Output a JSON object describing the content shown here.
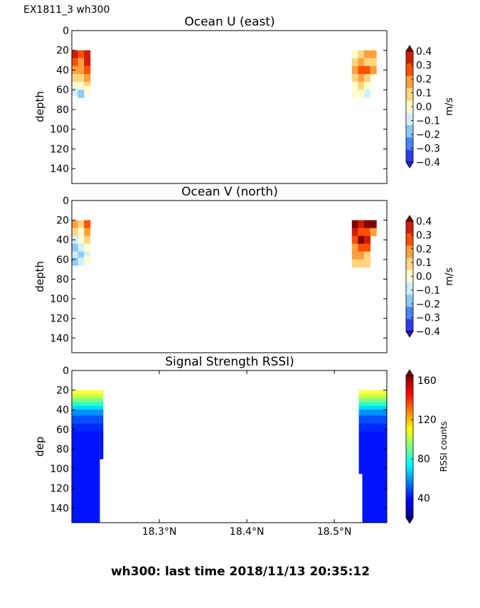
{
  "figure": {
    "corner_label": "EX1811_3 wh300",
    "footer": "wh300: last time 2018/11/13 20:35:12"
  },
  "chart_data": [
    {
      "type": "heatmap",
      "title": "Ocean U (east)",
      "ylabel": "depth",
      "ylim": [
        155,
        0
      ],
      "yticks": [
        "0",
        "20",
        "40",
        "60",
        "80",
        "100",
        "120",
        "140"
      ],
      "xlim": [
        18.2,
        18.56
      ],
      "colorbar": {
        "label": "m/s",
        "ticks": [
          "0.4",
          "0.3",
          "0.2",
          "0.1",
          "0.0",
          "−0.1",
          "−0.2",
          "−0.3",
          "−0.4"
        ],
        "levels": [
          "#7f0000",
          "#d01d00",
          "#ff5000",
          "#ffa040",
          "#ffd680",
          "#fffccf",
          "#d0f0ff",
          "#8ec8ff",
          "#4a84ff",
          "#2b3cf0",
          "#2a0fd0"
        ]
      },
      "blocks": [
        {
          "x": 18.2,
          "depth": 20,
          "color": "#d01d00"
        },
        {
          "x": 18.2,
          "depth": 28,
          "color": "#ff5000"
        },
        {
          "x": 18.2,
          "depth": 36,
          "color": "#ffa040"
        },
        {
          "x": 18.2,
          "depth": 44,
          "color": "#ffd680"
        },
        {
          "x": 18.2,
          "depth": 52,
          "color": "#fffccf"
        },
        {
          "x": 18.2,
          "depth": 58,
          "color": "#d0f0ff"
        },
        {
          "x": 18.207,
          "depth": 20,
          "color": "#ff5000"
        },
        {
          "x": 18.207,
          "depth": 28,
          "color": "#ffa040"
        },
        {
          "x": 18.207,
          "depth": 36,
          "color": "#ffa040"
        },
        {
          "x": 18.207,
          "depth": 44,
          "color": "#ffd680"
        },
        {
          "x": 18.207,
          "depth": 52,
          "color": "#fffccf"
        },
        {
          "x": 18.207,
          "depth": 60,
          "color": "#8ec8ff"
        },
        {
          "x": 18.214,
          "depth": 20,
          "color": "#d01d00"
        },
        {
          "x": 18.214,
          "depth": 28,
          "color": "#d01d00"
        },
        {
          "x": 18.214,
          "depth": 36,
          "color": "#ff5000"
        },
        {
          "x": 18.214,
          "depth": 44,
          "color": "#ffa040"
        },
        {
          "x": 18.214,
          "depth": 52,
          "color": "#ffd680"
        },
        {
          "x": 18.214,
          "depth": 56,
          "color": "#fffccf"
        },
        {
          "x": 18.52,
          "depth": 20,
          "color": "#fffccf"
        },
        {
          "x": 18.52,
          "depth": 28,
          "color": "#ffd680"
        },
        {
          "x": 18.52,
          "depth": 36,
          "color": "#ffa040"
        },
        {
          "x": 18.52,
          "depth": 44,
          "color": "#ffd680"
        },
        {
          "x": 18.52,
          "depth": 52,
          "color": "#fffccf"
        },
        {
          "x": 18.52,
          "depth": 60,
          "color": "#fffccf"
        },
        {
          "x": 18.527,
          "depth": 20,
          "color": "#ffd680"
        },
        {
          "x": 18.527,
          "depth": 28,
          "color": "#ffa040"
        },
        {
          "x": 18.527,
          "depth": 36,
          "color": "#ff5000"
        },
        {
          "x": 18.527,
          "depth": 44,
          "color": "#ffa040"
        },
        {
          "x": 18.527,
          "depth": 52,
          "color": "#ffd680"
        },
        {
          "x": 18.527,
          "depth": 60,
          "color": "#fffccf"
        },
        {
          "x": 18.534,
          "depth": 20,
          "color": "#ffa040"
        },
        {
          "x": 18.534,
          "depth": 28,
          "color": "#ffd680"
        },
        {
          "x": 18.534,
          "depth": 36,
          "color": "#ff5000"
        },
        {
          "x": 18.534,
          "depth": 44,
          "color": "#ffd680"
        },
        {
          "x": 18.534,
          "depth": 52,
          "color": "#fffccf"
        },
        {
          "x": 18.534,
          "depth": 60,
          "color": "#d0f0ff"
        },
        {
          "x": 18.541,
          "depth": 20,
          "color": "#ffa040"
        },
        {
          "x": 18.541,
          "depth": 28,
          "color": "#ffd680"
        },
        {
          "x": 18.541,
          "depth": 36,
          "color": "#ffa040"
        }
      ]
    },
    {
      "type": "heatmap",
      "title": "Ocean V (north)",
      "ylabel": "depth",
      "ylim": [
        155,
        0
      ],
      "yticks": [
        "0",
        "20",
        "40",
        "60",
        "80",
        "100",
        "120",
        "140"
      ],
      "xlim": [
        18.2,
        18.56
      ],
      "colorbar": {
        "label": "m/s",
        "ticks": [
          "0.4",
          "0.3",
          "0.2",
          "0.1",
          "0.0",
          "−0.1",
          "−0.2",
          "−0.3",
          "−0.4"
        ],
        "levels": [
          "#7f0000",
          "#d01d00",
          "#ff5000",
          "#ffa040",
          "#ffd680",
          "#fffccf",
          "#d0f0ff",
          "#8ec8ff",
          "#4a84ff",
          "#2b3cf0",
          "#2a0fd0"
        ]
      },
      "blocks": [
        {
          "x": 18.2,
          "depth": 20,
          "color": "#ffa040"
        },
        {
          "x": 18.2,
          "depth": 28,
          "color": "#ffd680"
        },
        {
          "x": 18.2,
          "depth": 36,
          "color": "#d0f0ff"
        },
        {
          "x": 18.2,
          "depth": 44,
          "color": "#8ec8ff"
        },
        {
          "x": 18.2,
          "depth": 52,
          "color": "#d0f0ff"
        },
        {
          "x": 18.2,
          "depth": 58,
          "color": "#8ec8ff"
        },
        {
          "x": 18.207,
          "depth": 20,
          "color": "#ffd680"
        },
        {
          "x": 18.207,
          "depth": 28,
          "color": "#fffccf"
        },
        {
          "x": 18.207,
          "depth": 36,
          "color": "#fffccf"
        },
        {
          "x": 18.207,
          "depth": 44,
          "color": "#d0f0ff"
        },
        {
          "x": 18.207,
          "depth": 52,
          "color": "#8ec8ff"
        },
        {
          "x": 18.207,
          "depth": 58,
          "color": "#d0f0ff"
        },
        {
          "x": 18.214,
          "depth": 20,
          "color": "#ff5000"
        },
        {
          "x": 18.214,
          "depth": 28,
          "color": "#ffa040"
        },
        {
          "x": 18.214,
          "depth": 36,
          "color": "#ffd680"
        },
        {
          "x": 18.214,
          "depth": 44,
          "color": "#fffccf"
        },
        {
          "x": 18.214,
          "depth": 52,
          "color": "#d0f0ff"
        },
        {
          "x": 18.214,
          "depth": 56,
          "color": "#fffccf"
        },
        {
          "x": 18.52,
          "depth": 20,
          "color": "#7f0000"
        },
        {
          "x": 18.52,
          "depth": 28,
          "color": "#d01d00"
        },
        {
          "x": 18.52,
          "depth": 36,
          "color": "#ff5000"
        },
        {
          "x": 18.52,
          "depth": 44,
          "color": "#ffa040"
        },
        {
          "x": 18.52,
          "depth": 52,
          "color": "#ffa040"
        },
        {
          "x": 18.52,
          "depth": 60,
          "color": "#ffd680"
        },
        {
          "x": 18.527,
          "depth": 20,
          "color": "#d01d00"
        },
        {
          "x": 18.527,
          "depth": 28,
          "color": "#ff5000"
        },
        {
          "x": 18.527,
          "depth": 36,
          "color": "#7f0000"
        },
        {
          "x": 18.527,
          "depth": 44,
          "color": "#ff5000"
        },
        {
          "x": 18.527,
          "depth": 52,
          "color": "#ffa040"
        },
        {
          "x": 18.527,
          "depth": 60,
          "color": "#ffd680"
        },
        {
          "x": 18.534,
          "depth": 20,
          "color": "#7f0000"
        },
        {
          "x": 18.534,
          "depth": 28,
          "color": "#ff5000"
        },
        {
          "x": 18.534,
          "depth": 36,
          "color": "#d01d00"
        },
        {
          "x": 18.534,
          "depth": 44,
          "color": "#ff5000"
        },
        {
          "x": 18.534,
          "depth": 52,
          "color": "#ffd680"
        },
        {
          "x": 18.534,
          "depth": 60,
          "color": "#ffd680"
        },
        {
          "x": 18.541,
          "depth": 20,
          "color": "#7f0000"
        },
        {
          "x": 18.541,
          "depth": 28,
          "color": "#ffa040"
        }
      ]
    },
    {
      "type": "heatmap",
      "title": "Signal Strength RSSI)",
      "ylabel": "dep",
      "ylim": [
        155,
        0
      ],
      "yticks": [
        "0",
        "20",
        "40",
        "60",
        "80",
        "100",
        "120",
        "140"
      ],
      "xlim": [
        18.2,
        18.56
      ],
      "xticks": [
        {
          "value": 18.3,
          "label": "18.3°N"
        },
        {
          "value": 18.4,
          "label": "18.4°N"
        },
        {
          "value": 18.5,
          "label": "18.5°N"
        }
      ],
      "colorbar": {
        "label": "RSSI counts",
        "range": [
          20,
          165
        ],
        "ticks": [
          {
            "value": 160,
            "label": "160"
          },
          {
            "value": 120,
            "label": "120"
          },
          {
            "value": 80,
            "label": "80"
          },
          {
            "value": 40,
            "label": "40"
          }
        ]
      },
      "gradient_by_depth": [
        {
          "depth": 20,
          "color": "#ffff40"
        },
        {
          "depth": 24,
          "color": "#c8ff40"
        },
        {
          "depth": 28,
          "color": "#80ff80"
        },
        {
          "depth": 32,
          "color": "#30ffc8"
        },
        {
          "depth": 36,
          "color": "#00d8ff"
        },
        {
          "depth": 40,
          "color": "#0090ff"
        },
        {
          "depth": 46,
          "color": "#0050ff"
        },
        {
          "depth": 54,
          "color": "#0028ff"
        },
        {
          "depth": 62,
          "color": "#0014ff"
        }
      ],
      "profiles": [
        {
          "x_start": 18.2,
          "x_end": 18.232,
          "depth_start": 20,
          "depth_end": 155
        },
        {
          "x_start": 18.232,
          "x_end": 18.236,
          "depth_start": 20,
          "depth_end": 90
        },
        {
          "x_start": 18.236,
          "x_end": 18.232,
          "depth_start": 20,
          "depth_end": 25
        },
        {
          "x_start": 18.532,
          "x_end": 18.56,
          "depth_start": 20,
          "depth_end": 155
        },
        {
          "x_start": 18.528,
          "x_end": 18.532,
          "depth_start": 20,
          "depth_end": 105
        }
      ]
    }
  ]
}
